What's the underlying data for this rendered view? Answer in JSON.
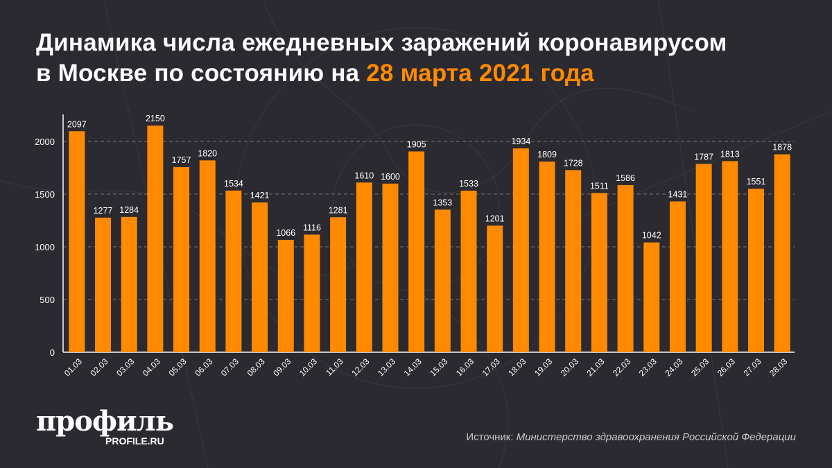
{
  "title": {
    "line1": "Динамика числа ежедневных заражений коронавирусом",
    "line2_prefix": "в Москве по состоянию на ",
    "line2_highlight": "28 марта 2021 года"
  },
  "colors": {
    "background": "#2a2a30",
    "bar": "#ff8a00",
    "highlight": "#ff8a00",
    "text": "#ffffff"
  },
  "chart_data": {
    "type": "bar",
    "categories": [
      "01.03",
      "02.03",
      "03.03",
      "04.03",
      "05.03",
      "06.03",
      "07.03",
      "08.03",
      "09.03",
      "10.03",
      "11.03",
      "12.03",
      "13.03",
      "14.03",
      "15.03",
      "16.03",
      "17.03",
      "18.03",
      "19.03",
      "20.03",
      "21.03",
      "22.03",
      "23.03",
      "24.03",
      "25.03",
      "26.03",
      "27.03",
      "28.03"
    ],
    "values": [
      2097,
      1277,
      1284,
      2150,
      1757,
      1820,
      1534,
      1421,
      1066,
      1116,
      1281,
      1610,
      1600,
      1905,
      1353,
      1533,
      1201,
      1934,
      1809,
      1728,
      1511,
      1586,
      1042,
      1431,
      1787,
      1813,
      1551,
      1878
    ],
    "yticks": [
      0,
      500,
      1000,
      1500,
      2000
    ],
    "ylim": [
      0,
      2200
    ],
    "grid": true,
    "data_labels": true
  },
  "footer": {
    "logo": "профиль",
    "logo_url": "PROFILE.RU",
    "source_label": "Источник: ",
    "source_value": "Министерство здравоохранения Российской Федерации"
  }
}
